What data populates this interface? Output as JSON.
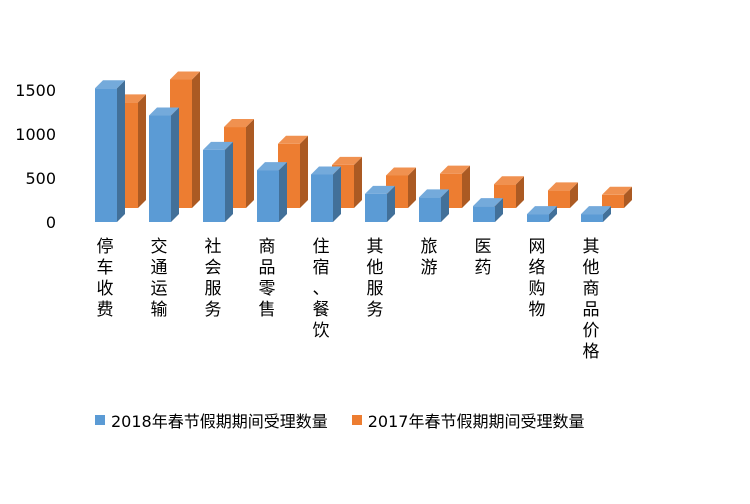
{
  "chart_data": {
    "type": "bar",
    "categories": [
      "停车收费",
      "交通运输",
      "社会服务",
      "商品零售",
      "住宿、餐饮",
      "其他服务",
      "旅游",
      "医药",
      "网络购物",
      "其他商品价格"
    ],
    "series": [
      {
        "name": "2018年春节假期期间受理数量",
        "color": "#5b9bd5",
        "values": [
          1520,
          1210,
          820,
          590,
          540,
          320,
          280,
          180,
          90,
          90
        ]
      },
      {
        "name": "2017年春节假期期间受理数量",
        "color": "#ed7d31",
        "values": [
          1200,
          1460,
          920,
          730,
          490,
          370,
          390,
          270,
          200,
          150
        ]
      }
    ],
    "yticks": [
      0,
      500,
      1000,
      1500
    ],
    "ylim": [
      0,
      1500
    ],
    "grid": false,
    "legend_position": "bottom"
  }
}
